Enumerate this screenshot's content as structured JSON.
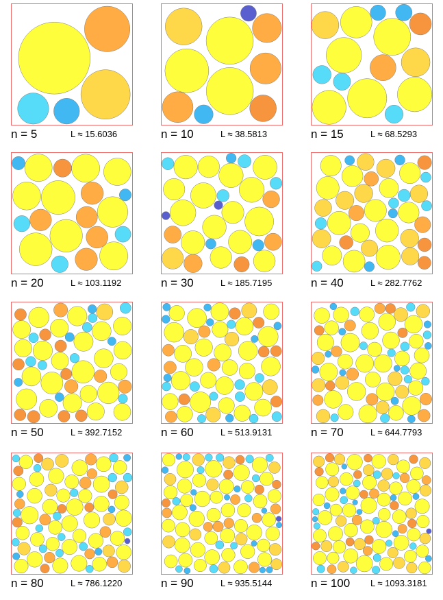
{
  "palette": [
    "#fffe3c",
    "#ffd84a",
    "#ffac44",
    "#f7953e",
    "#56dcf8",
    "#42b8f2",
    "#5a5fcf",
    "#a13f9a"
  ],
  "panels": [
    {
      "n_label": "n = 5",
      "l_label": "L ≈ 15.6036",
      "count": 5
    },
    {
      "n_label": "n = 10",
      "l_label": "L ≈ 38.5813",
      "count": 10
    },
    {
      "n_label": "n = 15",
      "l_label": "L ≈ 68.5293",
      "count": 15
    },
    {
      "n_label": "n = 20",
      "l_label": "L ≈ 103.1192",
      "count": 20
    },
    {
      "n_label": "n = 30",
      "l_label": "L ≈ 185.7195",
      "count": 30
    },
    {
      "n_label": "n = 40",
      "l_label": "L ≈ 282.7762",
      "count": 40
    },
    {
      "n_label": "n = 50",
      "l_label": "L ≈ 392.7152",
      "count": 50
    },
    {
      "n_label": "n = 60",
      "l_label": "L ≈ 513.9131",
      "count": 60
    },
    {
      "n_label": "n = 70",
      "l_label": "L ≈ 644.7793",
      "count": 70
    },
    {
      "n_label": "n = 80",
      "l_label": "L ≈ 786.1220",
      "count": 80
    },
    {
      "n_label": "n = 90",
      "l_label": "L ≈ 935.5144",
      "count": 90
    },
    {
      "n_label": "n = 100",
      "l_label": "L ≈ 1093.3181",
      "count": 100
    }
  ]
}
